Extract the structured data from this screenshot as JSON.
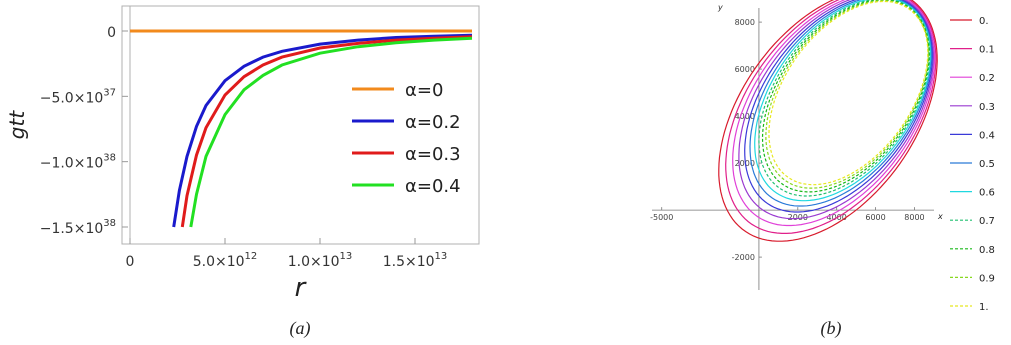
{
  "chart_data": [
    {
      "type": "line",
      "panel_label": "(a)",
      "xlabel": "r",
      "ylabel": "gtt",
      "xlim": [
        0,
        18000000000000.0
      ],
      "ylim": [
        -1.5e+38,
        0
      ],
      "x_ticks": [
        {
          "value": 0,
          "label": "0"
        },
        {
          "value": 5000000000000.0,
          "label": "5.0×10",
          "exp": "12"
        },
        {
          "value": 10000000000000.0,
          "label": "1.0×10",
          "exp": "13"
        },
        {
          "value": 15000000000000.0,
          "label": "1.5×10",
          "exp": "13"
        }
      ],
      "y_ticks": [
        {
          "value": 0,
          "label": "0"
        },
        {
          "value": -5e+37,
          "label": "−5.0×10",
          "exp": "37"
        },
        {
          "value": -1e+38,
          "label": "−1.0×10",
          "exp": "38"
        },
        {
          "value": -1.5e+38,
          "label": "−1.5×10",
          "exp": "38"
        }
      ],
      "series": [
        {
          "name": "α=0",
          "color": "#f28a1c",
          "x": [
            0,
            18000000000000.0
          ],
          "y": [
            0,
            0
          ]
        },
        {
          "name": "α=0.2",
          "color": "#1a1acc",
          "x": [
            2300000000000.0,
            2600000000000.0,
            3000000000000.0,
            3500000000000.0,
            4000000000000.0,
            5000000000000.0,
            6000000000000.0,
            7000000000000.0,
            8000000000000.0,
            10000000000000.0,
            12000000000000.0,
            14000000000000.0,
            16000000000000.0,
            18000000000000.0
          ],
          "y": [
            -1.5e+38,
            -1.22e+38,
            -9.6e+37,
            -7.3e+37,
            -5.7e+37,
            -3.8e+37,
            -2.7e+37,
            -2e+37,
            -1.55e+37,
            -1e+37,
            -7e+36,
            -5e+36,
            -4e+36,
            -3.2e+36
          ]
        },
        {
          "name": "α=0.3",
          "color": "#e01b1b",
          "x": [
            2750000000000.0,
            3000000000000.0,
            3500000000000.0,
            4000000000000.0,
            5000000000000.0,
            6000000000000.0,
            7000000000000.0,
            8000000000000.0,
            10000000000000.0,
            12000000000000.0,
            14000000000000.0,
            16000000000000.0,
            18000000000000.0
          ],
          "y": [
            -1.5e+38,
            -1.26e+38,
            -9.5e+37,
            -7.4e+37,
            -4.9e+37,
            -3.5e+37,
            -2.6e+37,
            -2e+37,
            -1.3e+37,
            -9.5e+36,
            -7e+36,
            -5.5e+36,
            -4.4e+36
          ]
        },
        {
          "name": "α=0.4",
          "color": "#22e022",
          "x": [
            3200000000000.0,
            3500000000000.0,
            4000000000000.0,
            5000000000000.0,
            6000000000000.0,
            7000000000000.0,
            8000000000000.0,
            10000000000000.0,
            12000000000000.0,
            14000000000000.0,
            16000000000000.0,
            18000000000000.0
          ],
          "y": [
            -1.5e+38,
            -1.25e+38,
            -9.6e+37,
            -6.4e+37,
            -4.5e+37,
            -3.4e+37,
            -2.6e+37,
            -1.7e+37,
            -1.2e+37,
            -9e+36,
            -7e+36,
            -5.6e+36
          ]
        }
      ],
      "legend": "right-center"
    },
    {
      "type": "line",
      "panel_label": "(b)",
      "xlabel": "x",
      "ylabel": "y",
      "xlim": [
        -5500,
        8800
      ],
      "ylim": [
        -3400,
        8600
      ],
      "x_ticks": [
        {
          "value": -5000,
          "label": "-5000"
        },
        {
          "value": 2000,
          "label": "2000"
        },
        {
          "value": 4000,
          "label": "4000"
        },
        {
          "value": 6000,
          "label": "6000"
        },
        {
          "value": 8000,
          "label": "8000"
        }
      ],
      "y_ticks": [
        {
          "value": -2000,
          "label": "-2000"
        },
        {
          "value": 2000,
          "label": "2000"
        },
        {
          "value": 4000,
          "label": "4000"
        },
        {
          "value": 6000,
          "label": "6000"
        },
        {
          "value": 8000,
          "label": "8000"
        }
      ],
      "orbit_shape": {
        "focus": [
          7400,
          7500
        ],
        "axis_tilt_deg": 42,
        "semi_minor_ratio": 0.62
      },
      "series": [
        {
          "name": "0.",
          "color": "#d81b2c",
          "dashed": false,
          "semi_major": 6600
        },
        {
          "name": "0.1",
          "color": "#e0208a",
          "dashed": false,
          "semi_major": 6350
        },
        {
          "name": "0.2",
          "color": "#e040d8",
          "dashed": false,
          "semi_major": 6100
        },
        {
          "name": "0.3",
          "color": "#9a3ad0",
          "dashed": false,
          "semi_major": 5880
        },
        {
          "name": "0.4",
          "color": "#3a3ad8",
          "dashed": false,
          "semi_major": 5670
        },
        {
          "name": "0.5",
          "color": "#2a7ad8",
          "dashed": false,
          "semi_major": 5480
        },
        {
          "name": "0.6",
          "color": "#20d8e0",
          "dashed": false,
          "semi_major": 5310
        },
        {
          "name": "0.7",
          "color": "#20c070",
          "dashed": true,
          "semi_major": 5160
        },
        {
          "name": "0.8",
          "color": "#18b818",
          "dashed": true,
          "semi_major": 5030
        },
        {
          "name": "0.9",
          "color": "#88d820",
          "dashed": true,
          "semi_major": 4910
        },
        {
          "name": "1.",
          "color": "#e8e820",
          "dashed": true,
          "semi_major": 4800
        }
      ],
      "legend": "right"
    }
  ]
}
